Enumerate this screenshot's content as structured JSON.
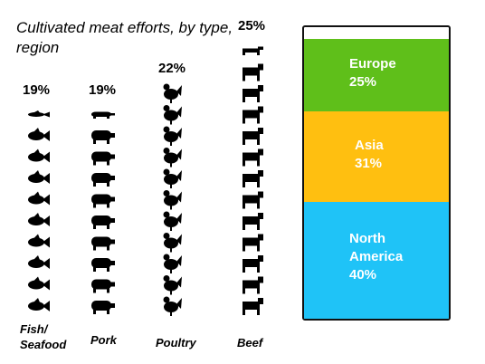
{
  "chart_data": [
    {
      "type": "pictograph",
      "title": "Cultivated meat efforts, by type, region",
      "categories": [
        "Fish/ Seafood",
        "Pork",
        "Poultry",
        "Beef"
      ],
      "values": [
        19,
        19,
        22,
        25
      ],
      "value_labels": [
        "19%",
        "19%",
        "22%",
        "25%"
      ],
      "color": "#000000"
    },
    {
      "type": "stacked-bar",
      "categories": [
        "Europe",
        "Asia",
        "North America"
      ],
      "values": [
        25,
        31,
        40
      ],
      "value_labels": [
        "25%",
        "31%",
        "40%"
      ],
      "colors": [
        "#5fbf1a",
        "#ffbf10",
        "#1fc3f7"
      ],
      "ylim": [
        0,
        100
      ]
    }
  ]
}
